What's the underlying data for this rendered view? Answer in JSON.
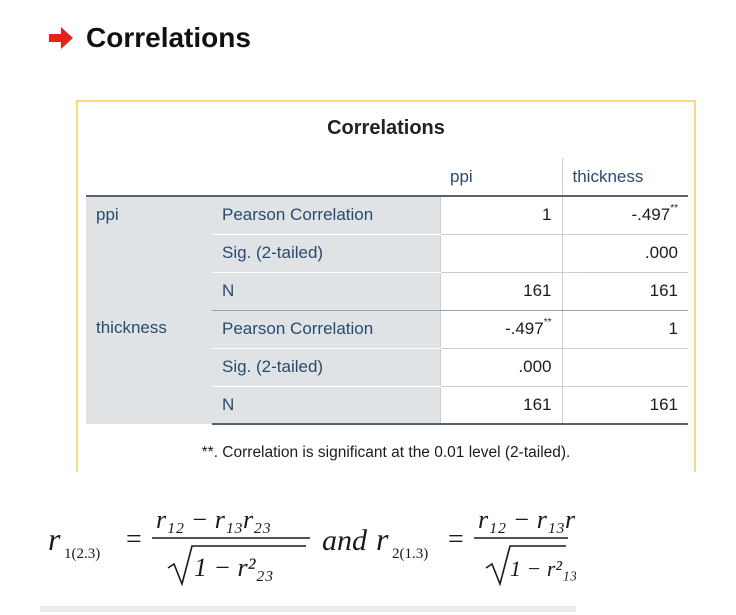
{
  "heading": {
    "icon": "right-arrow-icon",
    "title": "Correlations",
    "arrow_color": "#e8221b"
  },
  "table": {
    "title": "Correlations",
    "columns": [
      "ppi",
      "thickness"
    ],
    "rows": [
      {
        "variable": "ppi",
        "stat": "Pearson Correlation",
        "values": [
          "1",
          "-.497"
        ],
        "stars": [
          "",
          "**"
        ]
      },
      {
        "variable": "",
        "stat": "Sig. (2-tailed)",
        "values": [
          "",
          ".000"
        ],
        "stars": [
          "",
          ""
        ]
      },
      {
        "variable": "",
        "stat": "N",
        "values": [
          "161",
          "161"
        ],
        "stars": [
          "",
          ""
        ]
      },
      {
        "variable": "thickness",
        "stat": "Pearson Correlation",
        "values": [
          "-.497",
          "1"
        ],
        "stars": [
          "**",
          ""
        ]
      },
      {
        "variable": "",
        "stat": "Sig. (2-tailed)",
        "values": [
          ".000",
          ""
        ],
        "stars": [
          "",
          ""
        ]
      },
      {
        "variable": "",
        "stat": "N",
        "values": [
          "161",
          "161"
        ],
        "stars": [
          "",
          ""
        ]
      }
    ],
    "footnote": "**. Correlation is significant at the 0.01 level (2-tailed)."
  },
  "formula": {
    "lhs1": "r",
    "lhs1_sub": "1(2.3)",
    "num": "r₁₂ − r₁₃r₂₃",
    "den1": "1 − r²₂₃",
    "connector": "and",
    "lhs2": "r",
    "lhs2_sub": "2(1.3)",
    "den2": "1 − r²₁₃"
  }
}
